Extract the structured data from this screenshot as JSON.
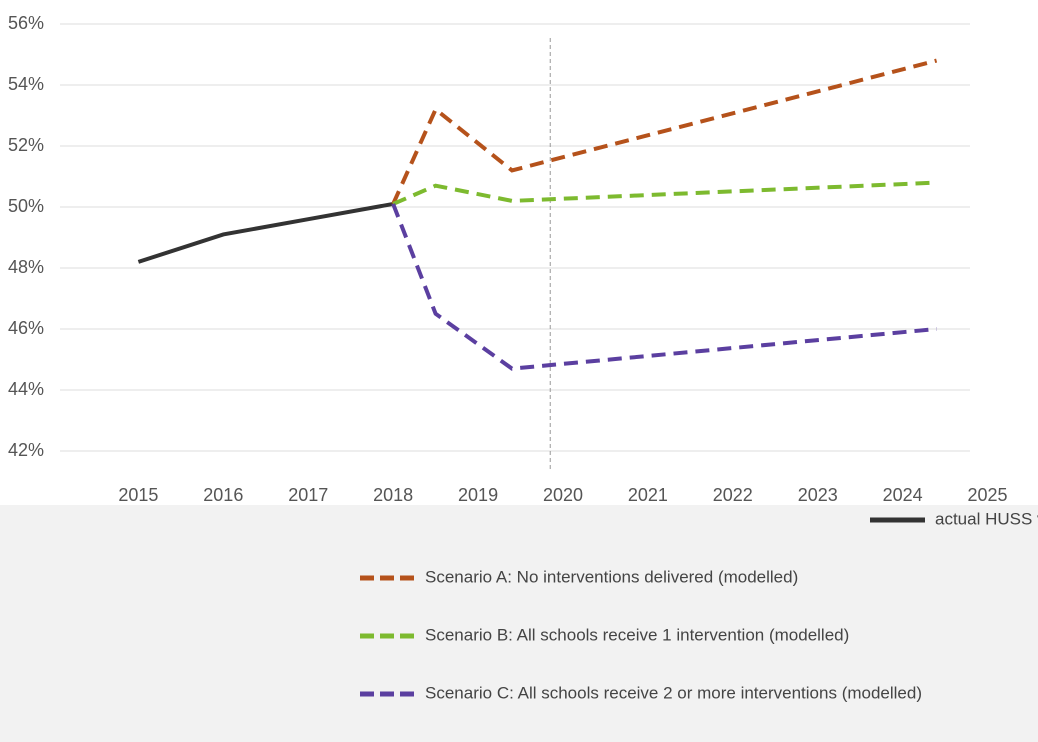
{
  "chart_data": {
    "type": "line",
    "xlim": [
      2013.9,
      2025.5
    ],
    "xticks": [
      2015,
      2016,
      2017,
      2018,
      2019,
      2020,
      2021,
      2022,
      2023,
      2024,
      2025
    ],
    "ylim": [
      42,
      56
    ],
    "yticks": [
      {
        "value": 42,
        "label": "42%"
      },
      {
        "value": 44,
        "label": "44%"
      },
      {
        "value": 46,
        "label": "46%"
      },
      {
        "value": 48,
        "label": "48%"
      },
      {
        "value": 50,
        "label": "50%"
      },
      {
        "value": 52,
        "label": "52%"
      },
      {
        "value": 54,
        "label": "54%"
      },
      {
        "value": 56,
        "label": "56%"
      }
    ],
    "grid": true,
    "divider_x": 2019.85,
    "series": [
      {
        "name": "actual HUSS value",
        "color": "#333333",
        "dashed": false,
        "x": [
          2015,
          2016,
          2017,
          2018
        ],
        "values": [
          48.2,
          49.1,
          49.6,
          50.1
        ]
      },
      {
        "name": "Scenario A: No interventions delivered (modelled)",
        "color": "#b5521b",
        "dashed": true,
        "x": [
          2018,
          2018.5,
          2019.4,
          2024.4
        ],
        "values": [
          50.1,
          53.2,
          51.2,
          54.8
        ]
      },
      {
        "name": "Scenario B: All schools receive 1 intervention (modelled)",
        "color": "#7dba2f",
        "dashed": true,
        "x": [
          2018,
          2018.5,
          2019.4,
          2024.4
        ],
        "values": [
          50.1,
          50.7,
          50.2,
          50.8
        ]
      },
      {
        "name": "Scenario C: All schools receive 2 or more interventions (modelled)",
        "color": "#5b3fa0",
        "dashed": true,
        "x": [
          2018,
          2018.5,
          2019.4,
          2024.4
        ],
        "values": [
          50.1,
          46.5,
          44.7,
          46.0
        ]
      }
    ]
  }
}
